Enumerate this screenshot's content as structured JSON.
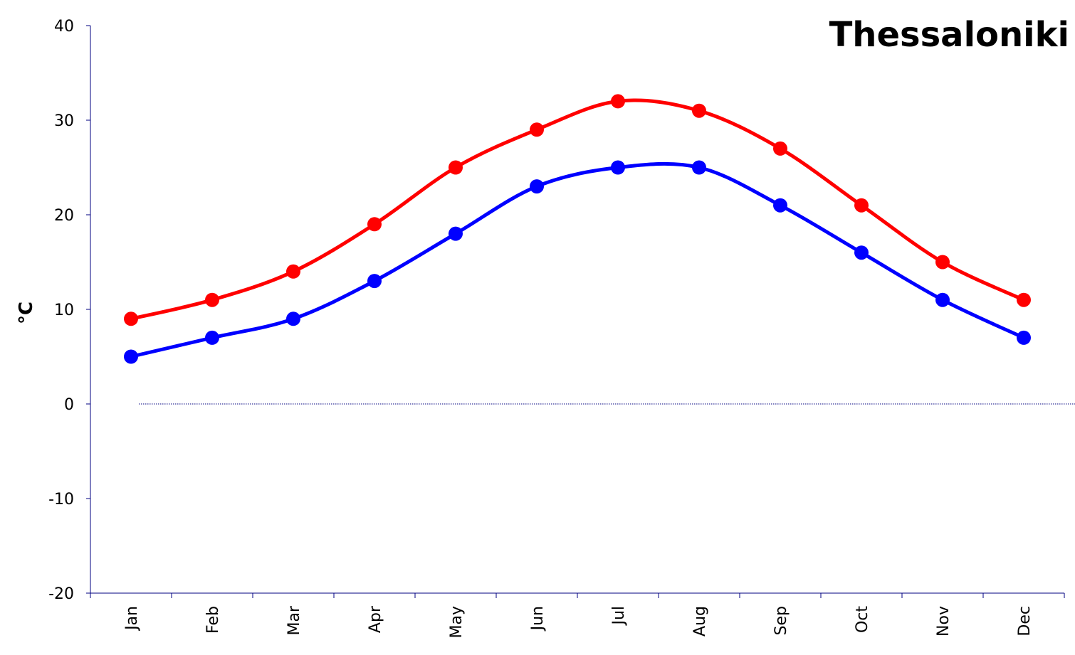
{
  "chart_data": {
    "type": "line",
    "title": "Thessaloniki",
    "xlabel": "",
    "ylabel": "°C",
    "categories": [
      "Jan",
      "Feb",
      "Mar",
      "Apr",
      "May",
      "Jun",
      "Jul",
      "Aug",
      "Sep",
      "Oct",
      "Nov",
      "Dec"
    ],
    "ylim": [
      -20,
      40
    ],
    "yticks": [
      "40",
      "30",
      "20",
      "10",
      "0",
      "-10",
      "-20"
    ],
    "grid": false,
    "legend": "none",
    "series": [
      {
        "values": [
          9,
          11,
          14,
          19,
          25,
          29,
          32,
          31,
          27,
          21,
          15,
          11
        ],
        "color": "#ff0000"
      },
      {
        "values": [
          5,
          7,
          9,
          13,
          18,
          23,
          25,
          25,
          21,
          16,
          11,
          7
        ],
        "color": "#0000ff"
      }
    ],
    "zero_line_color": "#000080",
    "axis_color": "#000080"
  }
}
